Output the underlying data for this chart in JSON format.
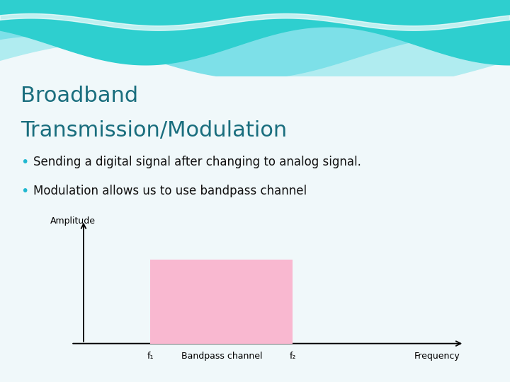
{
  "title_line1": "Broadband",
  "title_line2": "Transmission/Modulation",
  "title_color": "#1a6e7e",
  "bullet1": "Sending a digital signal after changing to analog signal.",
  "bullet2": "Modulation allows us to use bandpass channel",
  "bullet_color": "#111111",
  "bullet_dot_color": "#20b8d0",
  "bg_color": "#f0f8fa",
  "wave_color1": "#2ecfcf",
  "wave_color2": "#7de0e8",
  "wave_color3": "#b0ecf0",
  "diagram_ylabel": "Amplitude",
  "diagram_xlabel": "Frequency",
  "diagram_f1_label": "f₁",
  "diagram_f2_label": "f₂",
  "diagram_channel_label": "Bandpass channel",
  "diagram_rect_color": "#f9b8d0",
  "title_fontsize": 22,
  "bullet_fontsize": 12,
  "diag_fontsize": 9
}
